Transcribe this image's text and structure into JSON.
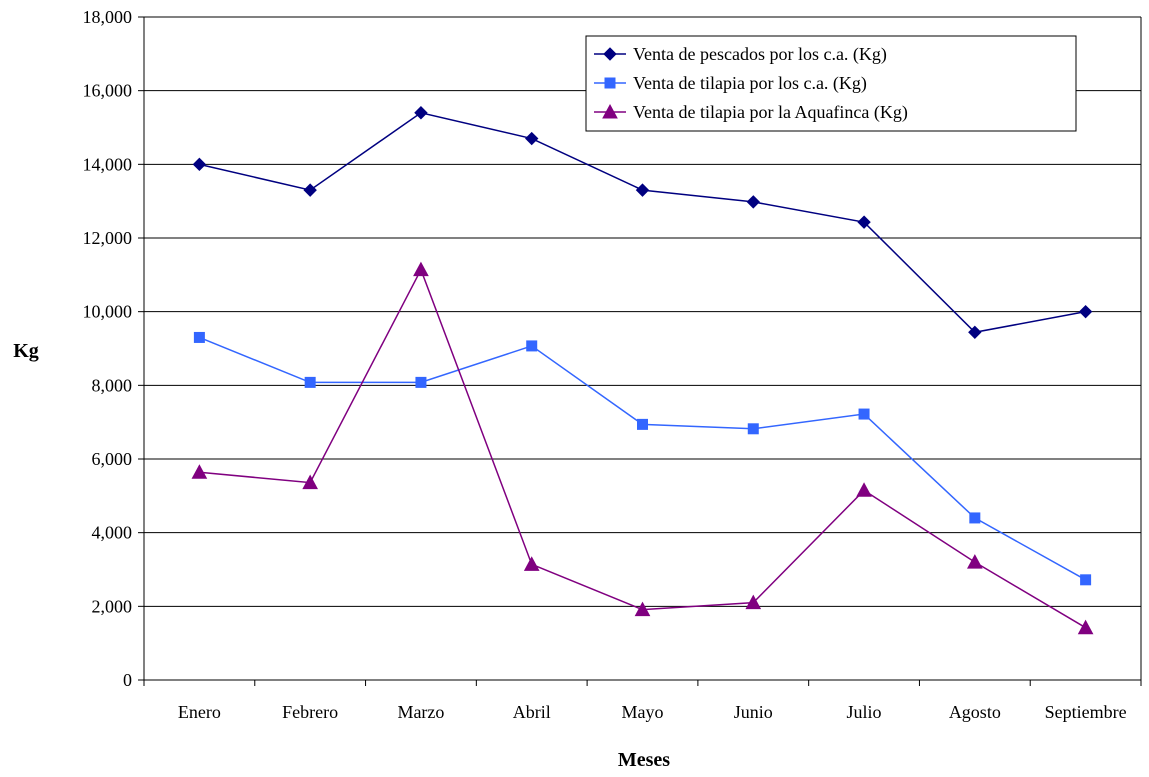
{
  "chart_data": {
    "type": "line",
    "title": "",
    "xlabel": "Meses",
    "ylabel": "Kg",
    "categories": [
      "Enero",
      "Febrero",
      "Marzo",
      "Abril",
      "Mayo",
      "Junio",
      "Julio",
      "Agosto",
      "Septiembre"
    ],
    "ylim": [
      0,
      18000
    ],
    "yticks": [
      0,
      2000,
      4000,
      6000,
      8000,
      10000,
      12000,
      14000,
      16000,
      18000
    ],
    "ytick_labels": [
      "0",
      "2,000",
      "4,000",
      "6,000",
      "8,000",
      "10,000",
      "12,000",
      "14,000",
      "16,000",
      "18,000"
    ],
    "grid": "horizontal",
    "legend_position": "top-right",
    "series": [
      {
        "name": "Venta de pescados por los c.a. (Kg)",
        "marker": "diamond",
        "color": "#000080",
        "values": [
          14000,
          13300,
          15400,
          14700,
          13300,
          12980,
          12430,
          9440,
          10000
        ]
      },
      {
        "name": "Venta de tilapia por los c.a. (Kg)",
        "marker": "square",
        "color": "#3366FF",
        "values": [
          9300,
          8080,
          8080,
          9070,
          6940,
          6820,
          7220,
          4400,
          2720
        ]
      },
      {
        "name": "Venta de tilapia por la Aquafinca (Kg)",
        "marker": "triangle",
        "color": "#800080",
        "values": [
          5640,
          5360,
          11140,
          3140,
          1910,
          2100,
          5150,
          3200,
          1420
        ]
      }
    ]
  }
}
